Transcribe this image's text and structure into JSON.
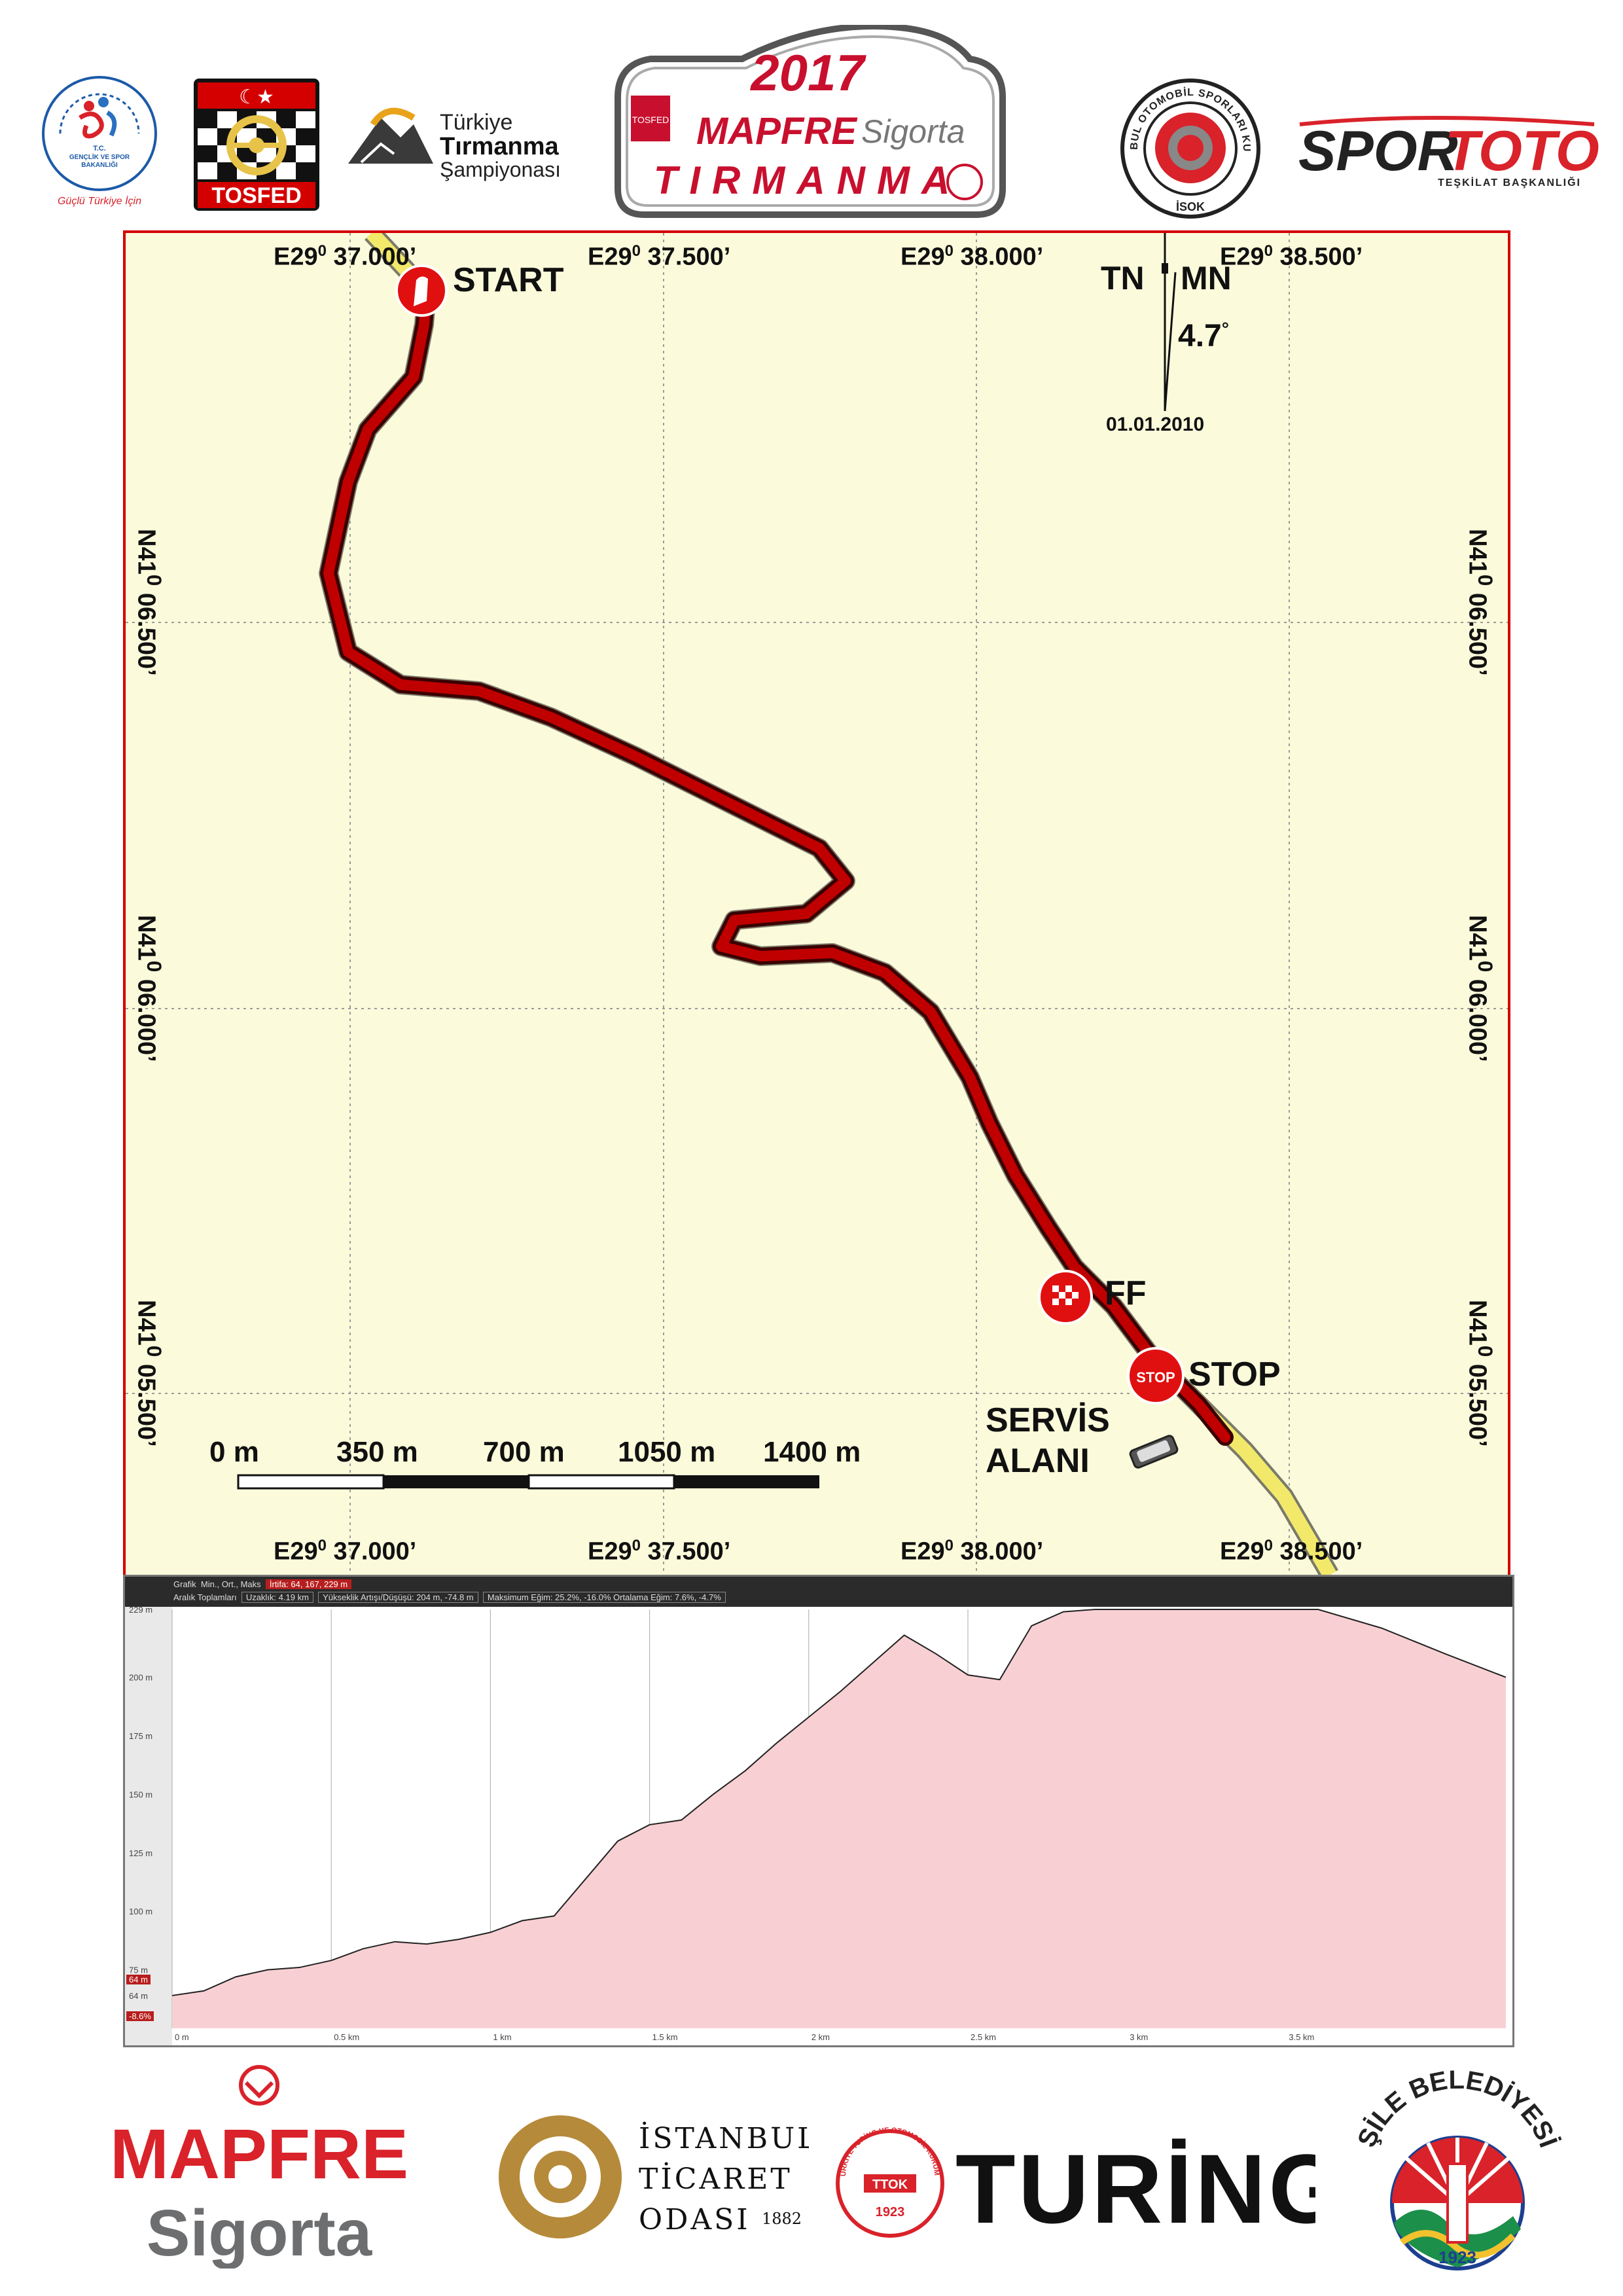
{
  "header": {
    "sponsors_left": [
      {
        "name": "gsb-logo",
        "lines": [
          "T.C.",
          "GENÇLİK VE SPOR",
          "BAKANLIĞI"
        ],
        "tagline": "Güçlü Türkiye İçin"
      },
      {
        "name": "tosfed-logo",
        "text": "TOSFED"
      },
      {
        "name": "tirmanma-sampiyonasi-logo",
        "lines": [
          "Türkiye",
          "Tırmanma",
          "Şampiyonası"
        ]
      }
    ],
    "event_plate": {
      "year": "2017",
      "brand": "MAPFRE",
      "brand2": "Sigorta",
      "event": "TIRMANMA"
    },
    "sponsors_right": [
      {
        "name": "isok-logo",
        "ring_text": "İSTANBUL OTOMOBİL SPORLARI KULÜBÜ",
        "bottom": "İSOK"
      },
      {
        "name": "spor-toto-logo",
        "text_a": "SPOR",
        "text_b": "TOTO",
        "sub": "TEŞKİLAT BAŞKANLIĞI"
      }
    ]
  },
  "map": {
    "top_coords": [
      "E29",
      "E29",
      "E29",
      "E29"
    ],
    "top_coord_values": [
      "37.000’",
      "37.500’",
      "38.000’",
      "38.500’"
    ],
    "deg_mark": "0",
    "side_coords": [
      {
        "deg": "N41",
        "value": "06.500’"
      },
      {
        "deg": "N41",
        "value": "06.000’"
      },
      {
        "deg": "N41",
        "value": "05.500’"
      }
    ],
    "north": {
      "tn": "TN",
      "mn": "MN",
      "declination": "4.7",
      "deg_sign": "°",
      "date": "01.01.2010"
    },
    "markers": {
      "start": "START",
      "ff": "FF",
      "stop": "STOP",
      "stop_icon": "STOP",
      "service_line1": "SERVİS",
      "service_line2": "ALANI"
    },
    "scale_bar": [
      "0 m",
      "350 m",
      "700 m",
      "1050 m",
      "1400 m"
    ],
    "colors": {
      "route": "#c00000",
      "road": "#f2e96b",
      "grid": "#9a9a9a",
      "frame": "#d40000"
    }
  },
  "profile": {
    "header_row1": [
      "Grafik",
      "Min., Ort., Maks",
      "İrtifa: 64, 167, 229 m"
    ],
    "header_row2": [
      "Aralık Toplamları",
      "Uzaklık: 4.19 km",
      "Yükseklik Artışı/Düşüşü: 204 m, -74.8 m",
      "Maksimum Eğim: 25.2%, -16.0%  Ortalama Eğim: 7.6%, -4.7%"
    ],
    "y_ticks": [
      "229 m",
      "200 m",
      "175 m",
      "150 m",
      "125 m",
      "100 m",
      "75 m",
      "64 m"
    ],
    "x_ticks": [
      "0 m",
      "0.5 km",
      "1 km",
      "1.5 km",
      "2 km",
      "2.5 km",
      "3 km",
      "3.5 km"
    ],
    "left_badges": [
      "64 m",
      "-8.6%"
    ],
    "chart_data": {
      "type": "area",
      "title": "",
      "xlabel": "",
      "ylabel": "",
      "x_unit": "km",
      "y_unit": "m",
      "xlim": [
        0,
        4.19
      ],
      "ylim": [
        50,
        229
      ],
      "x": [
        0,
        0.1,
        0.2,
        0.3,
        0.4,
        0.5,
        0.6,
        0.7,
        0.8,
        0.9,
        1.0,
        1.1,
        1.2,
        1.3,
        1.4,
        1.5,
        1.6,
        1.7,
        1.8,
        1.9,
        2.0,
        2.1,
        2.2,
        2.3,
        2.4,
        2.5,
        2.6,
        2.7,
        2.8,
        2.9,
        3.0,
        3.2,
        3.4,
        3.6,
        3.8,
        4.0,
        4.19
      ],
      "y": [
        64,
        66,
        72,
        75,
        76,
        79,
        84,
        87,
        86,
        88,
        91,
        96,
        98,
        114,
        130,
        137,
        139,
        150,
        160,
        172,
        183,
        194,
        206,
        218,
        210,
        201,
        199,
        222,
        228,
        229,
        229,
        229,
        229,
        229,
        221,
        210,
        200
      ],
      "colors": {
        "fill": "#f8d0d4",
        "line": "#222222",
        "grid": "#aaaaaa",
        "bg": "#ffffff"
      }
    }
  },
  "footer": {
    "mapfre": {
      "a": "MAPFRE",
      "b": "Sigorta"
    },
    "ito": {
      "l1": "İSTANBUL",
      "l2": "TİCARET",
      "l3": "ODASI",
      "year": "1882"
    },
    "turing": {
      "badge_top": "TÜRKİYE TURİNG VE OTOMOBİL KURUMU",
      "badge_mid": "TTOK",
      "badge_year": "1923",
      "text": "TURİNG"
    },
    "sile": {
      "arc": "ŞİLE BELEDİYESİ",
      "year": "1923"
    }
  }
}
